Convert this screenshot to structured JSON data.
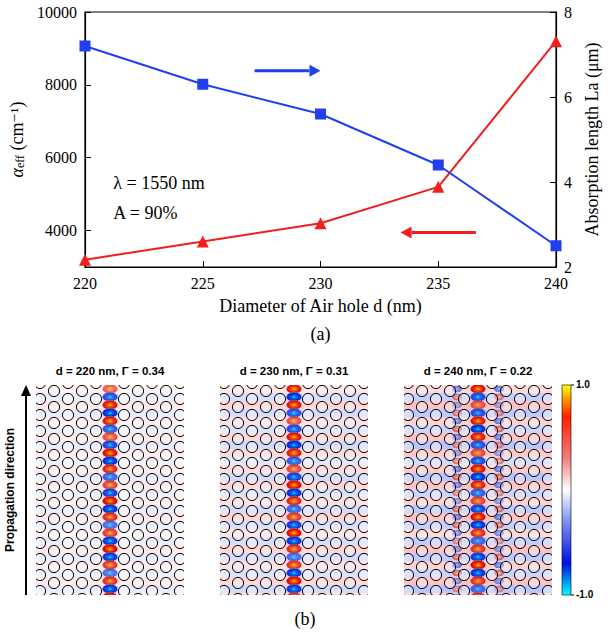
{
  "chart_data": {
    "type": "line",
    "xlabel": "Diameter of Air hole d (nm)",
    "ylabel": "αeff (cm⁻¹)",
    "y2label": "Absorption length La (μm)",
    "x": [
      220,
      225,
      230,
      235,
      240
    ],
    "xlim": [
      220,
      240
    ],
    "xticks": [
      220,
      225,
      230,
      235,
      240
    ],
    "ylim": [
      3000,
      10000
    ],
    "yticks": [
      4000,
      6000,
      8000,
      10000
    ],
    "y2lim": [
      2,
      8
    ],
    "y2ticks": [
      2,
      4,
      6,
      8
    ],
    "grid": false,
    "series": [
      {
        "color": "#f01e1e",
        "marker": "triangle",
        "values": [
          3200,
          3700,
          4200,
          5200,
          9200
        ]
      },
      {
        "color": "#1f3ff0",
        "marker": "square",
        "axis": "y2",
        "values": [
          7.2,
          6.3,
          5.6,
          4.4,
          2.5
        ]
      }
    ],
    "annotations": [
      "λ = 1550 nm",
      "A = 90%"
    ],
    "panel_label": "(a)"
  },
  "field_maps": {
    "panel_label": "(b)",
    "axis_label": "Propagation direction",
    "maps": [
      {
        "title": "d = 220 nm, Γ = 0.34"
      },
      {
        "title": "d = 230 nm, Γ = 0.31"
      },
      {
        "title": "d = 240 nm, Γ = 0.22"
      }
    ],
    "colorbar": {
      "range": [
        -1,
        1
      ],
      "ticks": [
        {
          "value": 1,
          "label": "1.0"
        },
        {
          "value": -1,
          "label": "-1.0"
        }
      ]
    }
  }
}
